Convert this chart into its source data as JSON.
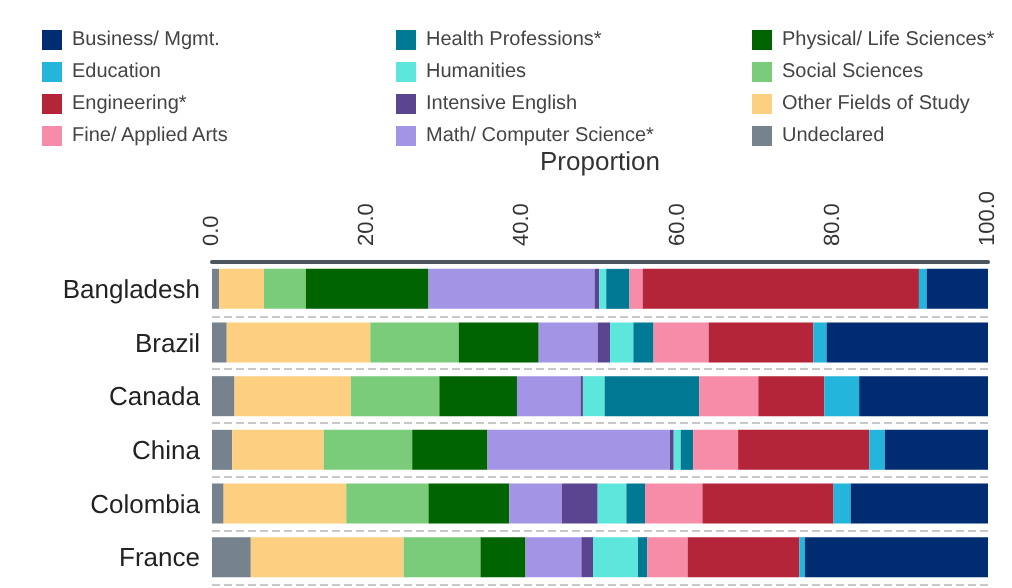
{
  "chart_data": {
    "type": "bar",
    "orientation": "horizontal",
    "stacked": true,
    "xlabel": "Proportion",
    "categories": [
      "Bangladesh",
      "Brazil",
      "Canada",
      "China",
      "Colombia",
      "France"
    ],
    "xlim": [
      0,
      100
    ],
    "xticks": [
      {
        "value": 0,
        "label": "0.0"
      },
      {
        "value": 20,
        "label": "20.0"
      },
      {
        "value": 40,
        "label": "40.0"
      },
      {
        "value": 60,
        "label": "60.0"
      },
      {
        "value": 80,
        "label": "80.0"
      },
      {
        "value": 100,
        "label": "100.0"
      }
    ],
    "grid": "y",
    "legend": "top",
    "series": [
      {
        "name": "Undeclared",
        "color": "#76838f",
        "values": [
          0.9,
          1.9,
          2.9,
          2.6,
          1.5,
          5.0
        ]
      },
      {
        "name": "Other Fields of Study",
        "color": "#fcd080",
        "values": [
          5.8,
          18.5,
          15.0,
          11.8,
          15.8,
          19.7
        ]
      },
      {
        "name": "Social Sciences",
        "color": "#7acc7a",
        "values": [
          5.4,
          11.4,
          11.4,
          11.4,
          10.6,
          9.9
        ]
      },
      {
        "name": "Physical/ Life Sciences*",
        "color": "#006400",
        "values": [
          15.8,
          10.3,
          10.0,
          9.7,
          10.4,
          5.8
        ]
      },
      {
        "name": "Math/ Computer Science*",
        "color": "#a394e6",
        "values": [
          21.4,
          7.6,
          8.2,
          23.5,
          6.8,
          7.2
        ]
      },
      {
        "name": "Intensive English",
        "color": "#5c4590",
        "values": [
          0.6,
          1.6,
          0.3,
          0.5,
          4.6,
          1.5
        ]
      },
      {
        "name": "Humanities",
        "color": "#5ce6dc",
        "values": [
          0.9,
          3.0,
          2.8,
          0.9,
          3.7,
          5.8
        ]
      },
      {
        "name": "Health Professions*",
        "color": "#007a94",
        "values": [
          3.0,
          2.6,
          12.2,
          1.6,
          2.4,
          1.2
        ]
      },
      {
        "name": "Fine/ Applied Arts",
        "color": "#f78ca9",
        "values": [
          1.7,
          7.1,
          7.6,
          5.8,
          7.4,
          5.2
        ]
      },
      {
        "name": "Engineering*",
        "color": "#b5253a",
        "values": [
          35.6,
          13.5,
          8.5,
          16.9,
          16.9,
          14.4
        ]
      },
      {
        "name": "Education",
        "color": "#23b5db",
        "values": [
          1.0,
          1.7,
          4.5,
          2.0,
          2.2,
          0.7
        ]
      },
      {
        "name": "Business/ Mgmt.",
        "color": "#002d72",
        "values": [
          7.9,
          20.8,
          16.7,
          13.5,
          17.7,
          23.6
        ]
      }
    ]
  }
}
